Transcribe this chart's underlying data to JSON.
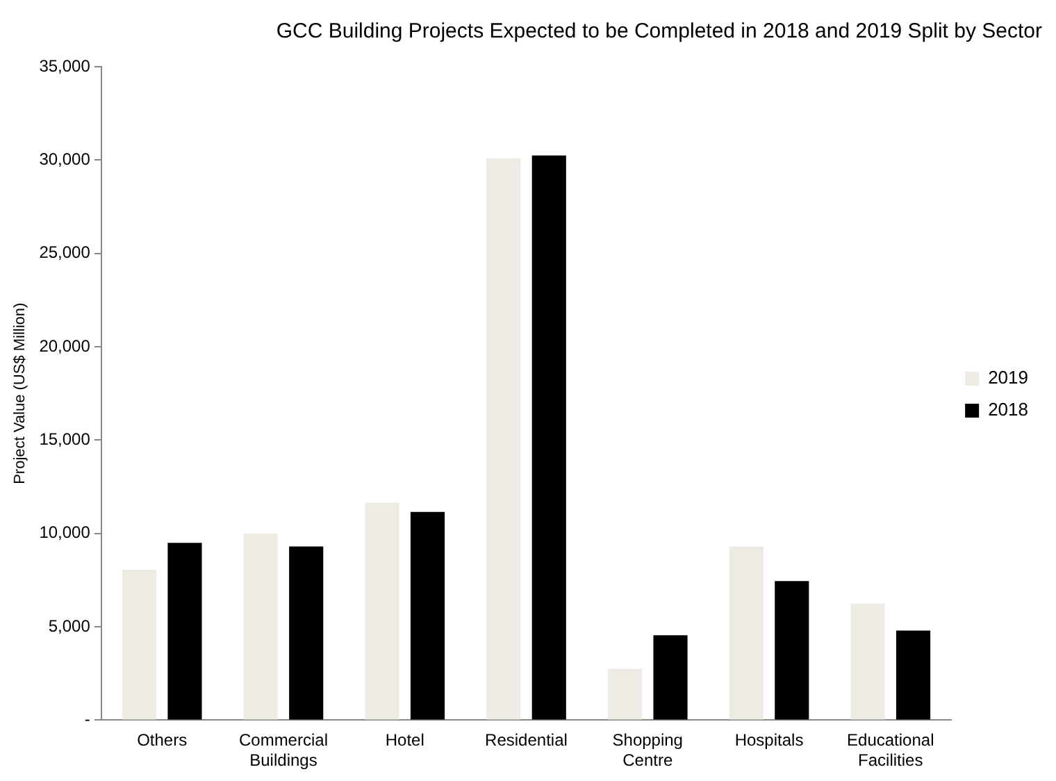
{
  "chart_data": {
    "type": "bar",
    "title": "GCC Building Projects Expected to be Completed in 2018 and 2019 Split by Sector",
    "ylabel": "Project Value (US$ Million)",
    "categories": [
      "Others",
      "Commercial Buildings",
      "Hotel",
      "Residential",
      "Shopping Centre",
      "Hospitals",
      "Educational Facilities"
    ],
    "series": [
      {
        "name": "2019",
        "color": "#eeebe5",
        "values": [
          8050,
          10000,
          11650,
          30100,
          2750,
          9300,
          6250
        ]
      },
      {
        "name": "2018",
        "color": "#000000",
        "values": [
          9500,
          9300,
          11150,
          30250,
          4550,
          7450,
          4800
        ]
      }
    ],
    "ylim": [
      0,
      35000
    ],
    "yticks": [
      {
        "value": 0,
        "label": "-"
      },
      {
        "value": 5000,
        "label": "5,000"
      },
      {
        "value": 10000,
        "label": "10,000"
      },
      {
        "value": 15000,
        "label": "15,000"
      },
      {
        "value": 20000,
        "label": "20,000"
      },
      {
        "value": 25000,
        "label": "25,000"
      },
      {
        "value": 30000,
        "label": "30,000"
      },
      {
        "value": 35000,
        "label": "35,000"
      }
    ],
    "grid": false,
    "legend": "right"
  }
}
